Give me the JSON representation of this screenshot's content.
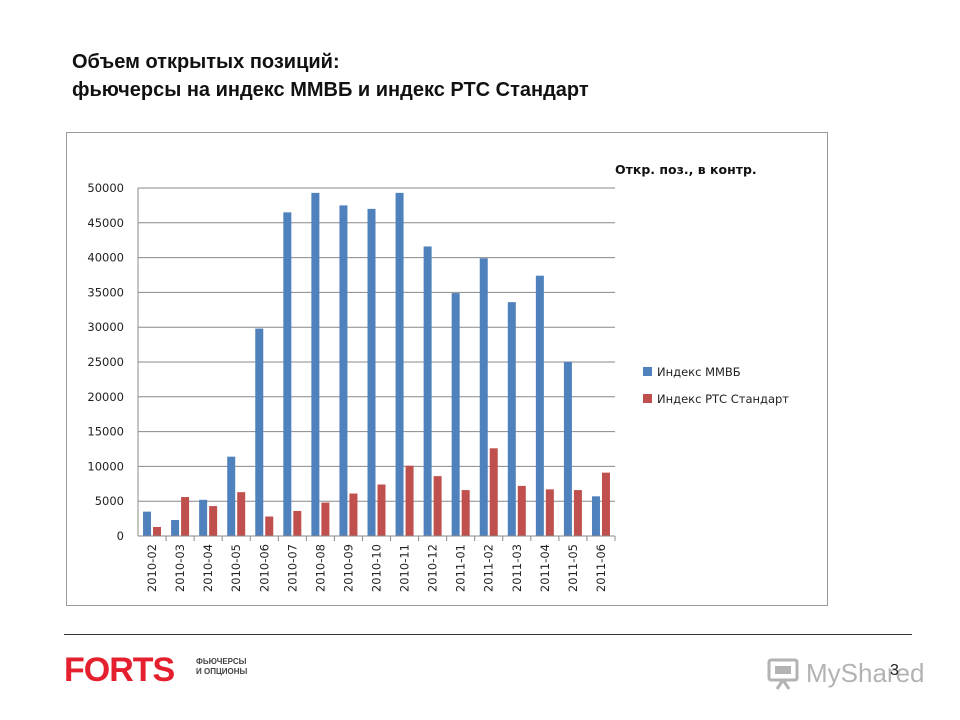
{
  "slide": {
    "title_line1": "Объем открытых позиций:",
    "title_line2": "фьючерсы на индекс ММВБ и индекс РТС Стандарт",
    "page_number": "3"
  },
  "logo": {
    "brand": "FORTS",
    "tagline_line1": "ФЬЮЧЕРСЫ",
    "tagline_line2": "И ОПЦИОНЫ"
  },
  "watermark": {
    "text": "MyShared"
  },
  "colors": {
    "series1": "#4f81bd",
    "series2": "#c0504d",
    "brand_red": "#e5202e",
    "grid": "#888888"
  },
  "chart_data": {
    "type": "bar",
    "title": "",
    "units_label": "Откр. поз., в контр.",
    "categories": [
      "2010-02",
      "2010-03",
      "2010-04",
      "2010-05",
      "2010-06",
      "2010-07",
      "2010-08",
      "2010-09",
      "2010-10",
      "2010-11",
      "2010-12",
      "2011-01",
      "2011-02",
      "2011-03",
      "2011-04",
      "2011-05",
      "2011-06"
    ],
    "series": [
      {
        "name": "Индекс ММВБ",
        "values": [
          3500,
          2300,
          5200,
          11400,
          29800,
          46500,
          49300,
          47500,
          47000,
          49300,
          41600,
          34900,
          39900,
          33600,
          37400,
          25000,
          5700
        ]
      },
      {
        "name": "Индекс РТС Стандарт",
        "values": [
          1300,
          5600,
          4300,
          6300,
          2800,
          3600,
          4800,
          6100,
          7400,
          10100,
          8600,
          6600,
          12600,
          7200,
          6700,
          6600,
          9100
        ]
      }
    ],
    "ylim": [
      0,
      50000
    ],
    "yticks": [
      "0",
      "5000",
      "10000",
      "15000",
      "20000",
      "25000",
      "30000",
      "35000",
      "40000",
      "45000",
      "50000"
    ],
    "grid": true,
    "legend_position": "right"
  }
}
